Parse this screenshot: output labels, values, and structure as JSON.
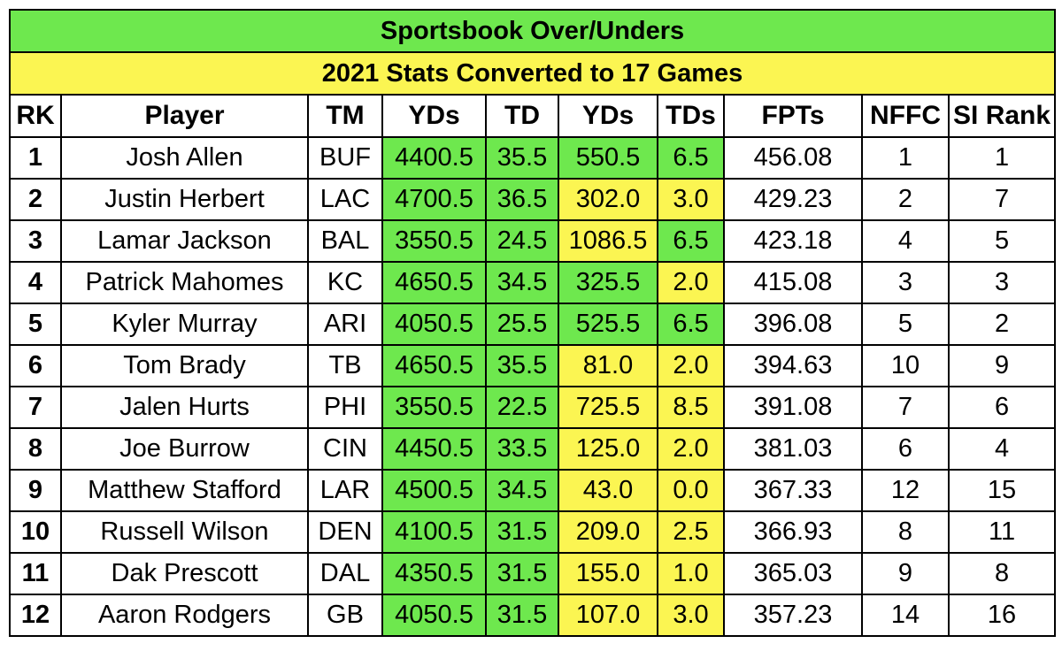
{
  "title": "Sportsbook Over/Unders",
  "subtitle": "2021 Stats Converted to 17 Games",
  "colors": {
    "title_bg": "#6ee84e",
    "subtitle_bg": "#fbf552",
    "green": "#6ee84e",
    "yellow": "#fbf552",
    "white": "#ffffff"
  },
  "columns": [
    "RK",
    "Player",
    "TM",
    "YDs",
    "TD",
    "YDs",
    "TDs",
    "FPTs",
    "NFFC",
    "SI Rank"
  ],
  "rows": [
    {
      "rk": "1",
      "player": "Josh Allen",
      "tm": "BUF",
      "pass_yds": "4400.5",
      "pass_td": "35.5",
      "rush_yds": "550.5",
      "rush_tds": "6.5",
      "fpts": "456.08",
      "nffc": "1",
      "si_rank": "1",
      "rush_yds_color": "green",
      "rush_tds_color": "green"
    },
    {
      "rk": "2",
      "player": "Justin Herbert",
      "tm": "LAC",
      "pass_yds": "4700.5",
      "pass_td": "36.5",
      "rush_yds": "302.0",
      "rush_tds": "3.0",
      "fpts": "429.23",
      "nffc": "2",
      "si_rank": "7",
      "rush_yds_color": "yellow",
      "rush_tds_color": "yellow"
    },
    {
      "rk": "3",
      "player": "Lamar Jackson",
      "tm": "BAL",
      "pass_yds": "3550.5",
      "pass_td": "24.5",
      "rush_yds": "1086.5",
      "rush_tds": "6.5",
      "fpts": "423.18",
      "nffc": "4",
      "si_rank": "5",
      "rush_yds_color": "yellow",
      "rush_tds_color": "green"
    },
    {
      "rk": "4",
      "player": "Patrick Mahomes",
      "tm": "KC",
      "pass_yds": "4650.5",
      "pass_td": "34.5",
      "rush_yds": "325.5",
      "rush_tds": "2.0",
      "fpts": "415.08",
      "nffc": "3",
      "si_rank": "3",
      "rush_yds_color": "green",
      "rush_tds_color": "yellow"
    },
    {
      "rk": "5",
      "player": "Kyler Murray",
      "tm": "ARI",
      "pass_yds": "4050.5",
      "pass_td": "25.5",
      "rush_yds": "525.5",
      "rush_tds": "6.5",
      "fpts": "396.08",
      "nffc": "5",
      "si_rank": "2",
      "rush_yds_color": "green",
      "rush_tds_color": "green"
    },
    {
      "rk": "6",
      "player": "Tom Brady",
      "tm": "TB",
      "pass_yds": "4650.5",
      "pass_td": "35.5",
      "rush_yds": "81.0",
      "rush_tds": "2.0",
      "fpts": "394.63",
      "nffc": "10",
      "si_rank": "9",
      "rush_yds_color": "yellow",
      "rush_tds_color": "yellow"
    },
    {
      "rk": "7",
      "player": "Jalen Hurts",
      "tm": "PHI",
      "pass_yds": "3550.5",
      "pass_td": "22.5",
      "rush_yds": "725.5",
      "rush_tds": "8.5",
      "fpts": "391.08",
      "nffc": "7",
      "si_rank": "6",
      "rush_yds_color": "yellow",
      "rush_tds_color": "yellow"
    },
    {
      "rk": "8",
      "player": "Joe Burrow",
      "tm": "CIN",
      "pass_yds": "4450.5",
      "pass_td": "33.5",
      "rush_yds": "125.0",
      "rush_tds": "2.0",
      "fpts": "381.03",
      "nffc": "6",
      "si_rank": "4",
      "rush_yds_color": "yellow",
      "rush_tds_color": "yellow"
    },
    {
      "rk": "9",
      "player": "Matthew Stafford",
      "tm": "LAR",
      "pass_yds": "4500.5",
      "pass_td": "34.5",
      "rush_yds": "43.0",
      "rush_tds": "0.0",
      "fpts": "367.33",
      "nffc": "12",
      "si_rank": "15",
      "rush_yds_color": "yellow",
      "rush_tds_color": "yellow"
    },
    {
      "rk": "10",
      "player": "Russell Wilson",
      "tm": "DEN",
      "pass_yds": "4100.5",
      "pass_td": "31.5",
      "rush_yds": "209.0",
      "rush_tds": "2.5",
      "fpts": "366.93",
      "nffc": "8",
      "si_rank": "11",
      "rush_yds_color": "yellow",
      "rush_tds_color": "yellow"
    },
    {
      "rk": "11",
      "player": "Dak Prescott",
      "tm": "DAL",
      "pass_yds": "4350.5",
      "pass_td": "31.5",
      "rush_yds": "155.0",
      "rush_tds": "1.0",
      "fpts": "365.03",
      "nffc": "9",
      "si_rank": "8",
      "rush_yds_color": "yellow",
      "rush_tds_color": "yellow"
    },
    {
      "rk": "12",
      "player": "Aaron Rodgers",
      "tm": "GB",
      "pass_yds": "4050.5",
      "pass_td": "31.5",
      "rush_yds": "107.0",
      "rush_tds": "3.0",
      "fpts": "357.23",
      "nffc": "14",
      "si_rank": "16",
      "rush_yds_color": "yellow",
      "rush_tds_color": "yellow"
    }
  ]
}
